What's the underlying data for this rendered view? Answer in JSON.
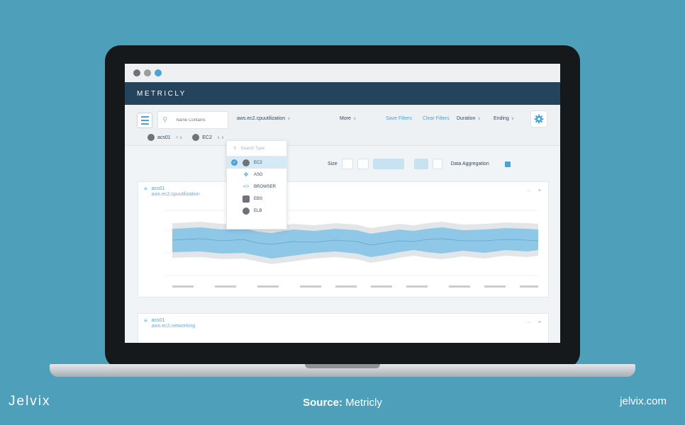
{
  "browser": {
    "dots": [
      "close",
      "minimize",
      "maximize"
    ]
  },
  "app": {
    "brand": "METRICLY"
  },
  "toolbar": {
    "search_placeholder": "Name Contains",
    "metric": "aws.ec2.cpuutilization",
    "more": "More",
    "save_filters": "Save Filters",
    "clear_filters": "Clear Filters",
    "duration": "Duration",
    "ending": "Ending"
  },
  "filters": {
    "tag1": "acs01",
    "tag2": "EC2"
  },
  "type_dropdown": {
    "search_placeholder": "Search Type",
    "items": [
      {
        "label": "EC2",
        "icon": "ec2-icon",
        "selected": true
      },
      {
        "label": "ASG",
        "icon": "asg-icon",
        "selected": false
      },
      {
        "label": "BROWSER",
        "icon": "browser-icon",
        "selected": false
      },
      {
        "label": "EBS",
        "icon": "ebs-icon",
        "selected": false
      },
      {
        "label": "ELB",
        "icon": "elb-icon",
        "selected": false
      }
    ]
  },
  "view": {
    "size_label": "Size",
    "data_aggregation": "Data Aggregation"
  },
  "cards": [
    {
      "name": "acs01",
      "metric": "aws.ec2.cpuutilization"
    },
    {
      "name": "acs01",
      "metric": "aws.ec2.networking"
    }
  ],
  "colors": {
    "accent": "#4aa3d6",
    "header": "#24435c",
    "band": "#8fc8e6",
    "band_outer": "#e3e6e9",
    "background": "#4d9fba"
  },
  "caption": {
    "left": "Jelvix",
    "source_prefix": "Source:",
    "source": "Metricly",
    "right": "jelvix.com"
  }
}
